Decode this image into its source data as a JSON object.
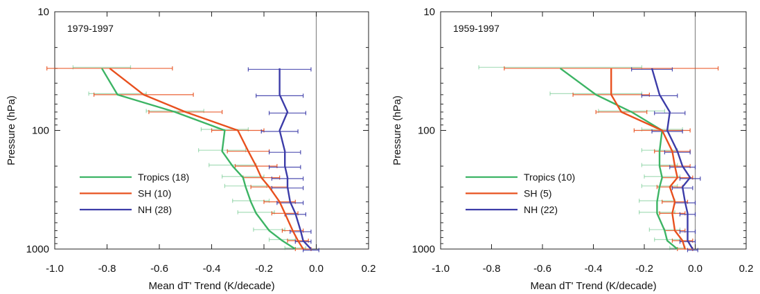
{
  "chart_data": [
    {
      "type": "line",
      "panel_label": "1979-1997",
      "xlabel": "Mean dT' Trend (K/decade)",
      "ylabel": "Pressure (hPa)",
      "xlim": [
        -1.0,
        0.2
      ],
      "xticks": [
        "-1.0",
        "-0.8",
        "-0.6",
        "-0.4",
        "-0.2",
        "0.0",
        "0.2"
      ],
      "xtick_values": [
        -1.0,
        -0.8,
        -0.6,
        -0.4,
        -0.2,
        0.0,
        0.2
      ],
      "ylim": [
        10,
        1000
      ],
      "yscale": "log",
      "yaxis_inverted": true,
      "yticks": [
        "10",
        "100",
        "1000"
      ],
      "ytick_values": [
        10,
        100,
        1000
      ],
      "zero_line": true,
      "legend_position": "lower-left",
      "pressure_levels": [
        30,
        50,
        70,
        100,
        150,
        200,
        250,
        300,
        400,
        500,
        700,
        850,
        1000
      ],
      "series": [
        {
          "name": "Tropics (18)",
          "color": "#3cb464",
          "values": [
            -0.82,
            -0.76,
            -0.54,
            -0.35,
            -0.36,
            -0.32,
            -0.28,
            -0.27,
            -0.25,
            -0.23,
            -0.18,
            -0.13,
            -0.08
          ],
          "errors": [
            0.11,
            0.11,
            0.11,
            0.09,
            0.09,
            0.09,
            0.08,
            0.08,
            0.07,
            0.07,
            0.06,
            0.05,
            0.04
          ]
        },
        {
          "name": "SH (10)",
          "color": "#e8501e",
          "values": [
            -0.79,
            -0.66,
            -0.5,
            -0.3,
            -0.26,
            -0.23,
            -0.21,
            -0.18,
            -0.14,
            -0.12,
            -0.09,
            -0.07,
            -0.05
          ],
          "errors": [
            0.24,
            0.19,
            0.14,
            0.1,
            0.08,
            0.08,
            0.07,
            0.07,
            0.06,
            0.05,
            0.04,
            0.04,
            0.03
          ]
        },
        {
          "name": "NH (28)",
          "color": "#3c3ca8",
          "values": [
            -0.14,
            -0.14,
            -0.11,
            -0.14,
            -0.12,
            -0.12,
            -0.11,
            -0.11,
            -0.1,
            -0.08,
            -0.06,
            -0.05,
            -0.02
          ],
          "errors": [
            0.12,
            0.09,
            0.07,
            0.07,
            0.06,
            0.06,
            0.06,
            0.06,
            0.05,
            0.04,
            0.04,
            0.03,
            0.03
          ]
        }
      ]
    },
    {
      "type": "line",
      "panel_label": "1959-1997",
      "xlabel": "Mean dT' Trend (K/decade)",
      "ylabel": "Pressure (hPa)",
      "xlim": [
        -1.0,
        0.2
      ],
      "xticks": [
        "-1.0",
        "-0.8",
        "-0.6",
        "-0.4",
        "-0.2",
        "0.0",
        "0.2"
      ],
      "xtick_values": [
        -1.0,
        -0.8,
        -0.6,
        -0.4,
        -0.2,
        0.0,
        0.2
      ],
      "ylim": [
        10,
        1000
      ],
      "yscale": "log",
      "yaxis_inverted": true,
      "yticks": [
        "10",
        "100",
        "1000"
      ],
      "ytick_values": [
        10,
        100,
        1000
      ],
      "zero_line": true,
      "legend_position": "lower-left",
      "pressure_levels": [
        30,
        50,
        70,
        100,
        150,
        200,
        250,
        300,
        400,
        500,
        700,
        850,
        1000
      ],
      "series": [
        {
          "name": "Tropics (10)",
          "color": "#3cb464",
          "values": [
            -0.53,
            -0.39,
            -0.25,
            -0.13,
            -0.14,
            -0.14,
            -0.13,
            -0.14,
            -0.15,
            -0.15,
            -0.12,
            -0.11,
            -0.07
          ],
          "errors": [
            0.32,
            0.18,
            0.13,
            0.08,
            0.07,
            0.07,
            0.07,
            0.07,
            0.07,
            0.07,
            0.06,
            0.05,
            0.03
          ]
        },
        {
          "name": "SH (5)",
          "color": "#e8501e",
          "values": [
            -0.33,
            -0.33,
            -0.29,
            -0.13,
            -0.09,
            -0.08,
            -0.07,
            -0.1,
            -0.08,
            -0.09,
            -0.08,
            -0.05,
            -0.04
          ],
          "errors": [
            0.42,
            0.15,
            0.1,
            0.11,
            0.07,
            0.06,
            0.06,
            0.05,
            0.05,
            0.05,
            0.04,
            0.04,
            0.03
          ]
        },
        {
          "name": "NH (22)",
          "color": "#3c3ca8",
          "values": [
            -0.17,
            -0.14,
            -0.1,
            -0.11,
            -0.07,
            -0.05,
            -0.02,
            -0.05,
            -0.04,
            -0.03,
            -0.03,
            -0.03,
            -0.01
          ],
          "errors": [
            0.08,
            0.07,
            0.06,
            0.06,
            0.05,
            0.05,
            0.04,
            0.04,
            0.04,
            0.03,
            0.03,
            0.03,
            0.02
          ]
        }
      ]
    }
  ]
}
